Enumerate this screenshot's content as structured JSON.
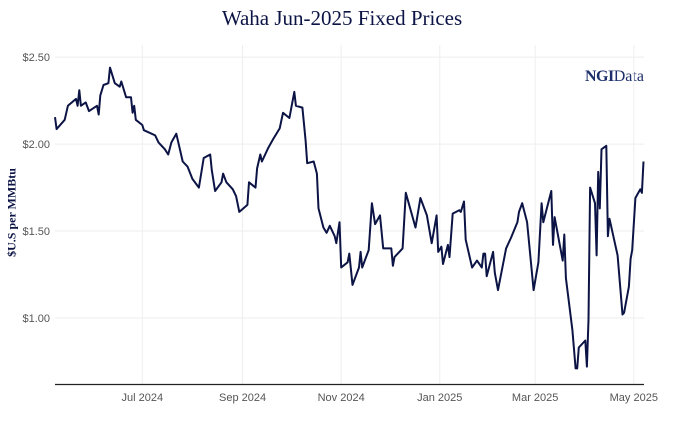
{
  "chart_data": {
    "type": "line",
    "title": "Waha Jun-2025 Fixed Prices",
    "ylabel": "$U.S per MMBtu",
    "xlabel": "",
    "watermark": "NGIData",
    "ylim": [
      0.62,
      2.57
    ],
    "xlim": [
      "2024-05-08",
      "2025-05-07"
    ],
    "grid": true,
    "line_color": "#0c1445",
    "yticks": [
      {
        "v": 2.5,
        "label": "$2.50"
      },
      {
        "v": 2.0,
        "label": "$2.00"
      },
      {
        "v": 1.5,
        "label": "$1.50"
      },
      {
        "v": 1.0,
        "label": "$1.00"
      }
    ],
    "xticks": [
      {
        "d": "2024-07-01",
        "label": "Jul 2024"
      },
      {
        "d": "2024-09-01",
        "label": "Sep 2024"
      },
      {
        "d": "2024-11-01",
        "label": "Nov 2024"
      },
      {
        "d": "2025-01-01",
        "label": "Jan 2025"
      },
      {
        "d": "2025-03-01",
        "label": "Mar 2025"
      },
      {
        "d": "2025-05-01",
        "label": "May 2025"
      }
    ],
    "series": [
      {
        "x": [
          "2024-05-08",
          "2024-05-09",
          "2024-05-14",
          "2024-05-16",
          "2024-05-21",
          "2024-05-22",
          "2024-05-23",
          "2024-05-24",
          "2024-05-27",
          "2024-05-29",
          "2024-06-03",
          "2024-06-04",
          "2024-06-05",
          "2024-06-07",
          "2024-06-10",
          "2024-06-11",
          "2024-06-14",
          "2024-06-17",
          "2024-06-18",
          "2024-06-21",
          "2024-06-24",
          "2024-06-25",
          "2024-06-26",
          "2024-06-27",
          "2024-07-01",
          "2024-07-02",
          "2024-07-09",
          "2024-07-11",
          "2024-07-15",
          "2024-07-17",
          "2024-07-19",
          "2024-07-22",
          "2024-07-26",
          "2024-07-29",
          "2024-08-01",
          "2024-08-05",
          "2024-08-08",
          "2024-08-12",
          "2024-08-13",
          "2024-08-15",
          "2024-08-19",
          "2024-08-20",
          "2024-08-22",
          "2024-08-26",
          "2024-08-28",
          "2024-08-30",
          "2024-09-04",
          "2024-09-05",
          "2024-09-09",
          "2024-09-10",
          "2024-09-12",
          "2024-09-13",
          "2024-09-17",
          "2024-09-20",
          "2024-09-24",
          "2024-09-26",
          "2024-09-30",
          "2024-10-03",
          "2024-10-04",
          "2024-10-08",
          "2024-10-10",
          "2024-10-11",
          "2024-10-15",
          "2024-10-17",
          "2024-10-18",
          "2024-10-21",
          "2024-10-23",
          "2024-10-25",
          "2024-10-28",
          "2024-10-29",
          "2024-10-31",
          "2024-11-01",
          "2024-11-05",
          "2024-11-06",
          "2024-11-08",
          "2024-11-12",
          "2024-11-13",
          "2024-11-14",
          "2024-11-18",
          "2024-11-20",
          "2024-11-22",
          "2024-11-25",
          "2024-11-27",
          "2024-12-02",
          "2024-12-03",
          "2024-12-04",
          "2024-12-09",
          "2024-12-11",
          "2024-12-17",
          "2024-12-20",
          "2024-12-24",
          "2024-12-27",
          "2024-12-30",
          "2024-12-31",
          "2025-01-02",
          "2025-01-03",
          "2025-01-06",
          "2025-01-07",
          "2025-01-09",
          "2025-01-13",
          "2025-01-14",
          "2025-01-16",
          "2025-01-17",
          "2025-01-21",
          "2025-01-24",
          "2025-01-27",
          "2025-01-28",
          "2025-01-29",
          "2025-01-30",
          "2025-02-03",
          "2025-02-04",
          "2025-02-06",
          "2025-02-11",
          "2025-02-14",
          "2025-02-18",
          "2025-02-19",
          "2025-02-21",
          "2025-02-24",
          "2025-02-28",
          "2025-03-03",
          "2025-03-05",
          "2025-03-06",
          "2025-03-11",
          "2025-03-12",
          "2025-03-13",
          "2025-03-18",
          "2025-03-19",
          "2025-03-20",
          "2025-03-24",
          "2025-03-26",
          "2025-03-27",
          "2025-03-28",
          "2025-04-01",
          "2025-04-02",
          "2025-04-03",
          "2025-04-04",
          "2025-04-07",
          "2025-04-08",
          "2025-04-09",
          "2025-04-10",
          "2025-04-11",
          "2025-04-14",
          "2025-04-15",
          "2025-04-16",
          "2025-04-21",
          "2025-04-24",
          "2025-04-25",
          "2025-04-28",
          "2025-04-29",
          "2025-04-30",
          "2025-05-02",
          "2025-05-05",
          "2025-05-06",
          "2025-05-07"
        ],
        "y": [
          2.155,
          2.086,
          2.14,
          2.22,
          2.26,
          2.22,
          2.31,
          2.22,
          2.24,
          2.19,
          2.22,
          2.17,
          2.28,
          2.34,
          2.35,
          2.44,
          2.35,
          2.33,
          2.36,
          2.27,
          2.27,
          2.18,
          2.22,
          2.14,
          2.11,
          2.08,
          2.05,
          2.01,
          1.97,
          1.94,
          2.01,
          2.06,
          1.9,
          1.87,
          1.8,
          1.75,
          1.92,
          1.94,
          1.85,
          1.73,
          1.78,
          1.83,
          1.78,
          1.74,
          1.7,
          1.61,
          1.65,
          1.78,
          1.75,
          1.86,
          1.94,
          1.9,
          1.98,
          2.03,
          2.09,
          2.18,
          2.15,
          2.3,
          2.22,
          2.21,
          2.02,
          1.89,
          1.9,
          1.83,
          1.63,
          1.52,
          1.49,
          1.53,
          1.47,
          1.43,
          1.55,
          1.29,
          1.32,
          1.37,
          1.19,
          1.29,
          1.38,
          1.29,
          1.39,
          1.66,
          1.54,
          1.59,
          1.4,
          1.4,
          1.3,
          1.35,
          1.4,
          1.72,
          1.52,
          1.69,
          1.59,
          1.43,
          1.59,
          1.38,
          1.41,
          1.31,
          1.42,
          1.35,
          1.6,
          1.62,
          1.61,
          1.67,
          1.45,
          1.29,
          1.33,
          1.29,
          1.37,
          1.37,
          1.24,
          1.38,
          1.26,
          1.16,
          1.4,
          1.46,
          1.55,
          1.61,
          1.66,
          1.55,
          1.16,
          1.32,
          1.66,
          1.55,
          1.73,
          1.42,
          1.58,
          1.33,
          1.48,
          1.23,
          0.93,
          0.71,
          0.71,
          0.83,
          0.87,
          0.72,
          0.99,
          1.75,
          1.66,
          1.36,
          1.84,
          1.63,
          1.97,
          1.99,
          1.47,
          1.57,
          1.36,
          1.02,
          1.03,
          1.18,
          1.34,
          1.39,
          1.69,
          1.74,
          1.72,
          1.9
        ]
      }
    ]
  }
}
